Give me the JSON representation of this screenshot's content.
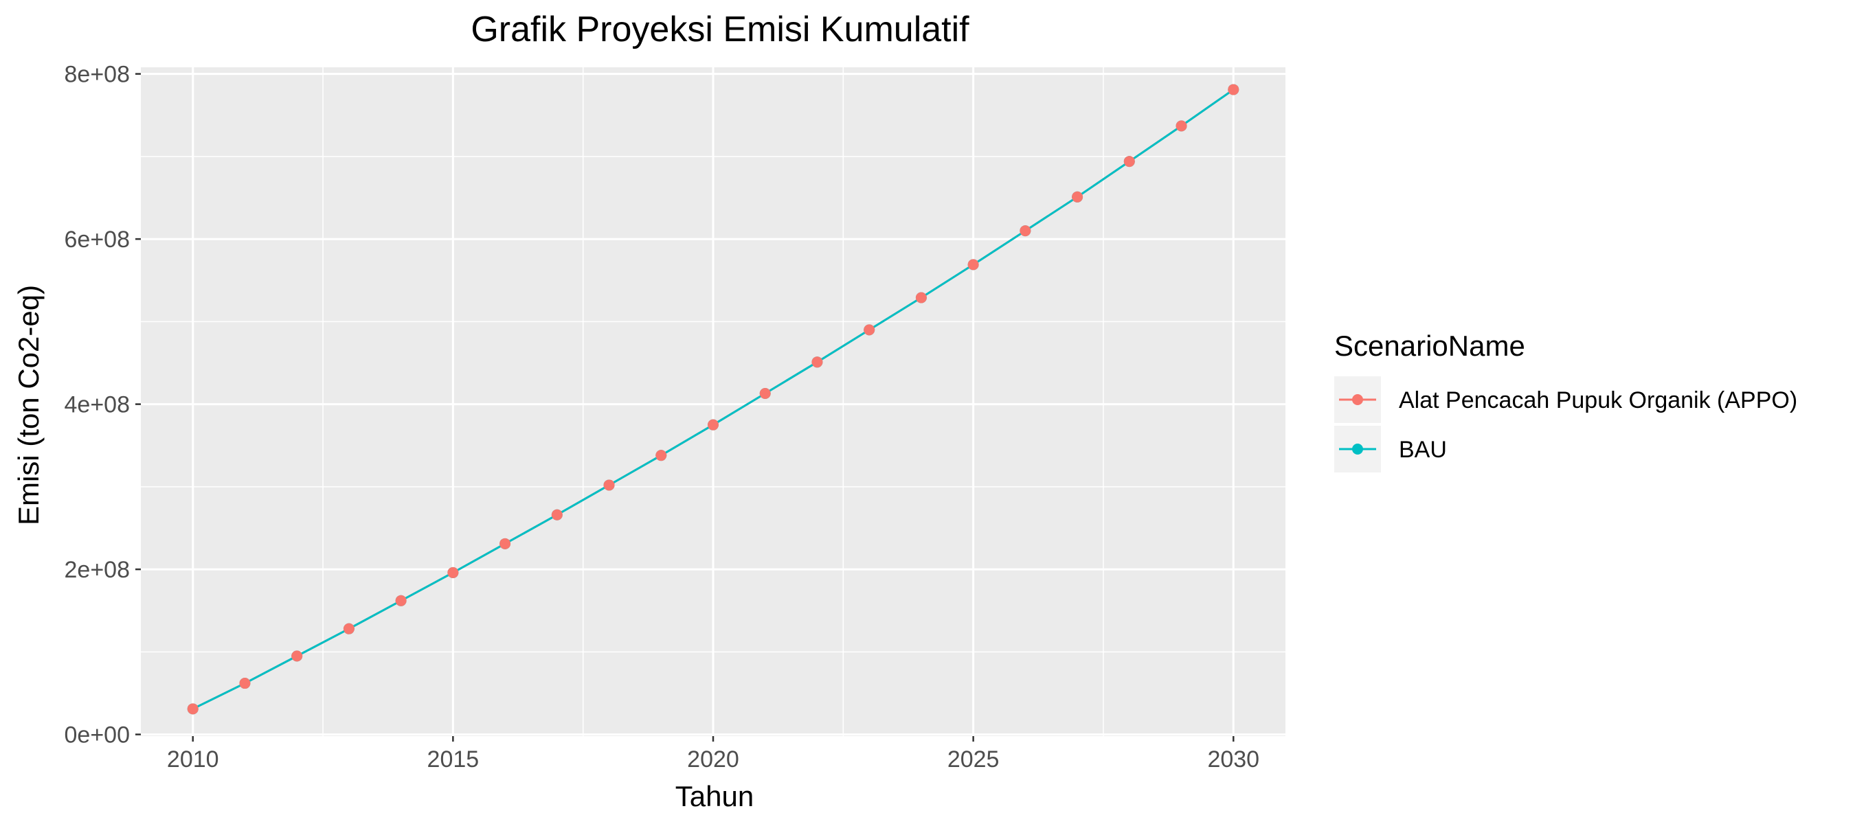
{
  "chart_data": {
    "type": "line",
    "title": "Grafik Proyeksi Emisi Kumulatif",
    "xlabel": "Tahun",
    "ylabel": "Emisi (ton Co2-eq)",
    "x": [
      2010,
      2011,
      2012,
      2013,
      2014,
      2015,
      2016,
      2017,
      2018,
      2019,
      2020,
      2021,
      2022,
      2023,
      2024,
      2025,
      2026,
      2027,
      2028,
      2029,
      2030
    ],
    "xlim": [
      2009,
      2031
    ],
    "ylim": [
      -2000000,
      808000000
    ],
    "x_ticks": [
      2010,
      2015,
      2020,
      2025,
      2030
    ],
    "x_tick_labels": [
      "2010",
      "2015",
      "2020",
      "2025",
      "2030"
    ],
    "y_ticks": [
      0,
      200000000,
      400000000,
      600000000,
      800000000
    ],
    "y_tick_labels": [
      "0e+00",
      "2e+08",
      "4e+08",
      "6e+08",
      "8e+08"
    ],
    "grid": true,
    "legend_title": "ScenarioName",
    "legend_position": "right",
    "series": [
      {
        "name": "Alat Pencacah Pupuk Organik (APPO)",
        "color": "#F8766D",
        "values": [
          31000000,
          62000000,
          95000000,
          128000000,
          162000000,
          196000000,
          231000000,
          266000000,
          302000000,
          338000000,
          375000000,
          413000000,
          451000000,
          490000000,
          529000000,
          569000000,
          610000000,
          651000000,
          694000000,
          737000000,
          781000000
        ]
      },
      {
        "name": "BAU",
        "color": "#00BFC4",
        "values": [
          31000000,
          62000000,
          95000000,
          128000000,
          162000000,
          196000000,
          231000000,
          266000000,
          302000000,
          338000000,
          375000000,
          413000000,
          451000000,
          490000000,
          529000000,
          569000000,
          610000000,
          651000000,
          694000000,
          737000000,
          781000000
        ]
      }
    ]
  }
}
